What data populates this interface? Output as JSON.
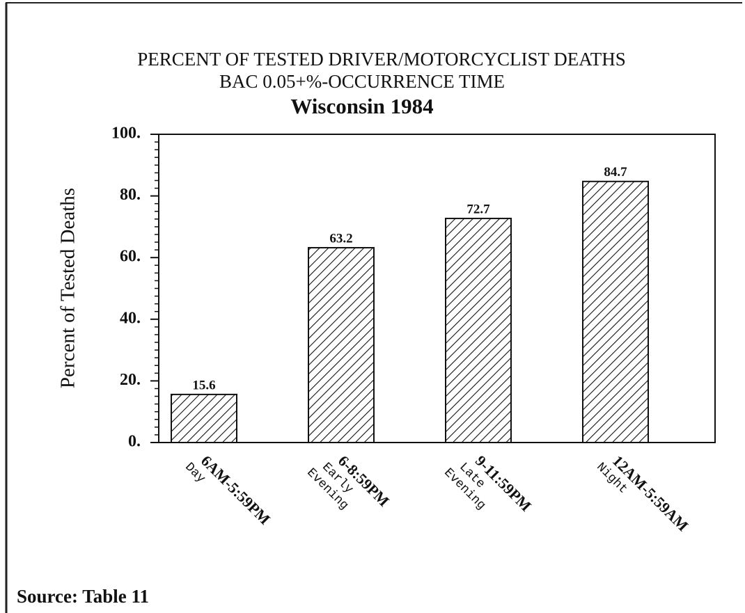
{
  "chart_data": {
    "type": "bar",
    "title": "PERCENT OF TESTED DRIVER/MOTORCYCLIST DEATHS",
    "title_line2": "BAC 0.05+%-OCCURRENCE TIME",
    "subtitle": "Wisconsin 1984",
    "ylabel": "Percent of Tested Deaths",
    "categories": [
      "6AM-5:59PM",
      "6-8:59PM",
      "9-11:59PM",
      "12AM-5:59AM"
    ],
    "sublabels": [
      [
        "Day"
      ],
      [
        "Early",
        "Evening"
      ],
      [
        "Late",
        "Evening"
      ],
      [
        "Night"
      ]
    ],
    "values": [
      15.6,
      63.2,
      72.7,
      84.7
    ],
    "color": "#111111",
    "ylim": [
      0,
      100
    ],
    "yticks": [
      {
        "value": 0,
        "label": "0."
      },
      {
        "value": 20,
        "label": "20."
      },
      {
        "value": 40,
        "label": "40."
      },
      {
        "value": 60,
        "label": "60."
      },
      {
        "value": 80,
        "label": "80."
      },
      {
        "value": 100,
        "label": "100."
      }
    ],
    "source": "Source: Table 11"
  }
}
